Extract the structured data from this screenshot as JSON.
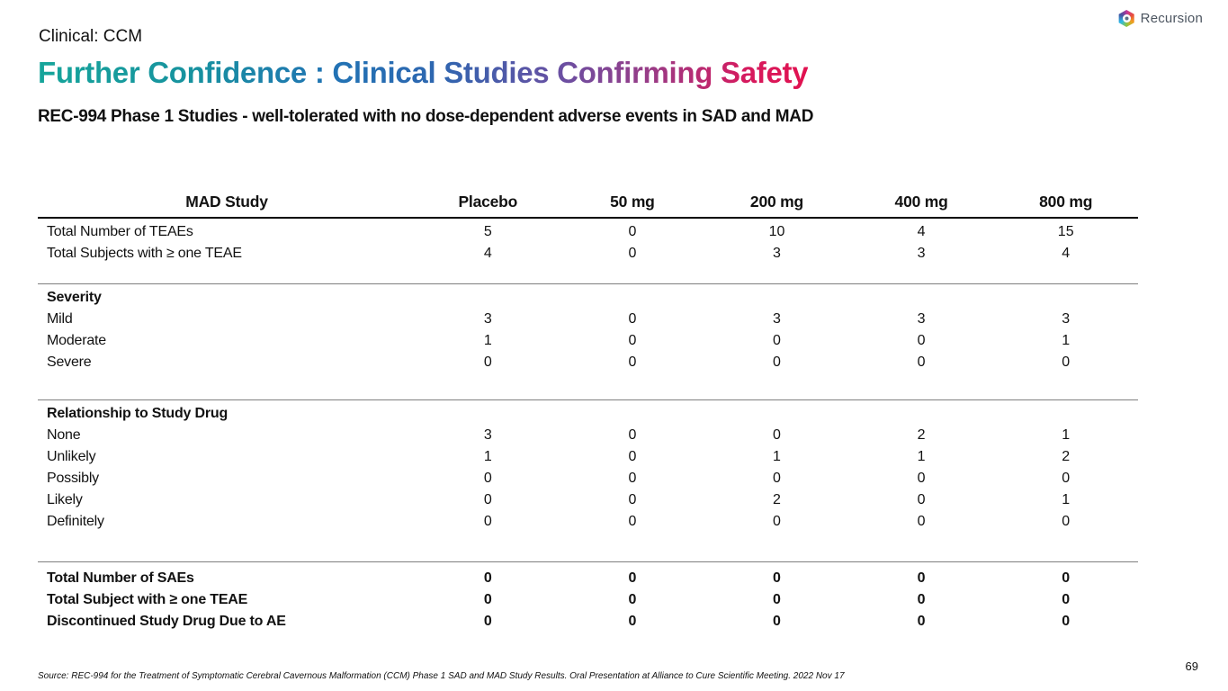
{
  "brand": {
    "logo_text": "Recursion"
  },
  "header": {
    "eyebrow": "Clinical: CCM",
    "title": "Further Confidence : Clinical Studies Confirming Safety",
    "subtitle": "REC-994 Phase 1 Studies - well-tolerated with no dose-dependent adverse events in SAD and MAD"
  },
  "table": {
    "columns": [
      "MAD Study",
      "Placebo",
      "50 mg",
      "200 mg",
      "400 mg",
      "800 mg"
    ],
    "sections": [
      {
        "heading": null,
        "rows": [
          {
            "label": "Total Number of TEAEs",
            "bold": false,
            "values": [
              "5",
              "0",
              "10",
              "4",
              "15"
            ]
          },
          {
            "label": "Total Subjects with ≥ one TEAE",
            "bold": false,
            "values": [
              "4",
              "0",
              "3",
              "3",
              "4"
            ]
          }
        ]
      },
      {
        "heading": "Severity",
        "rows": [
          {
            "label": "Mild",
            "bold": false,
            "values": [
              "3",
              "0",
              "3",
              "3",
              "3"
            ]
          },
          {
            "label": "Moderate",
            "bold": false,
            "values": [
              "1",
              "0",
              "0",
              "0",
              "1"
            ]
          },
          {
            "label": "Severe",
            "bold": false,
            "values": [
              "0",
              "0",
              "0",
              "0",
              "0"
            ]
          }
        ]
      },
      {
        "heading": "Relationship to Study Drug",
        "rows": [
          {
            "label": "None",
            "bold": false,
            "values": [
              "3",
              "0",
              "0",
              "2",
              "1"
            ]
          },
          {
            "label": "Unlikely",
            "bold": false,
            "values": [
              "1",
              "0",
              "1",
              "1",
              "2"
            ]
          },
          {
            "label": "Possibly",
            "bold": false,
            "values": [
              "0",
              "0",
              "0",
              "0",
              "0"
            ]
          },
          {
            "label": "Likely",
            "bold": false,
            "values": [
              "0",
              "0",
              "2",
              "0",
              "1"
            ]
          },
          {
            "label": "Definitely",
            "bold": false,
            "values": [
              "0",
              "0",
              "0",
              "0",
              "0"
            ]
          }
        ]
      },
      {
        "heading": null,
        "rows": [
          {
            "label": "Total Number of SAEs",
            "bold": true,
            "values": [
              "0",
              "0",
              "0",
              "0",
              "0"
            ]
          },
          {
            "label": "Total Subject with ≥ one TEAE",
            "bold": true,
            "values": [
              "0",
              "0",
              "0",
              "0",
              "0"
            ]
          },
          {
            "label": "Discontinued Study Drug Due to AE",
            "bold": true,
            "values": [
              "0",
              "0",
              "0",
              "0",
              "0"
            ]
          }
        ]
      }
    ]
  },
  "footer": {
    "source": "Source: REC-994 for the Treatment of Symptomatic Cerebral Cavernous Malformation (CCM) Phase 1 SAD and MAD Study Results. Oral Presentation at Alliance to Cure Scientific Meeting. 2022 Nov 17",
    "page_number": "69"
  },
  "colors": {
    "title_gradient_start": "#16a59a",
    "title_gradient_blue": "#2e66b0",
    "title_gradient_purple": "#6a4fa2",
    "title_gradient_end": "#e1114f",
    "body_text": "#111111",
    "logo_text": "#4c5560",
    "table_header_rule": "#000000",
    "table_section_rule": "#7f7f7f"
  }
}
